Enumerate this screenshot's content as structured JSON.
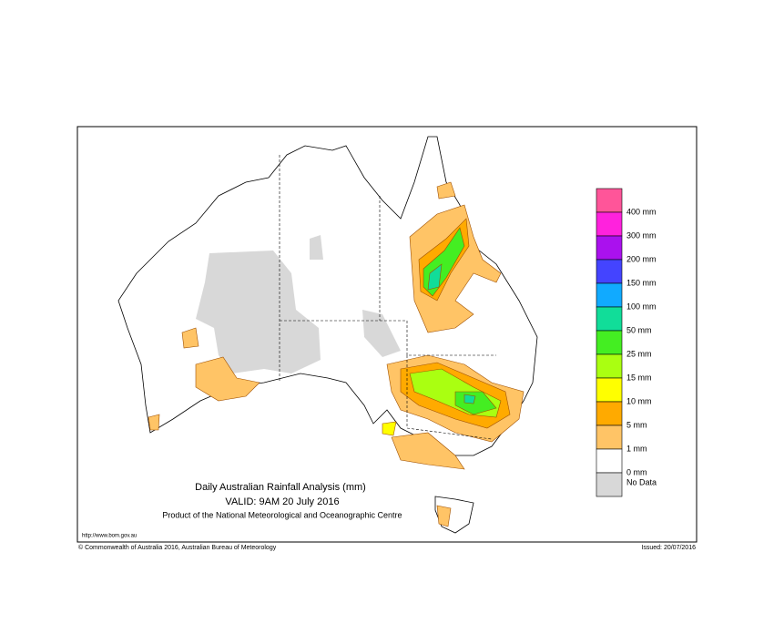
{
  "title": "Daily Australian Rainfall Analysis (mm)",
  "valid": "VALID: 9AM 20 July 2016",
  "product": "Product of the National Meteorological and Oceanographic Centre",
  "url": "http://www.bom.gov.au",
  "copyright": "© Commonwealth of Australia 2016, Australian Bureau of Meteorology",
  "issued": "Issued: 20/07/2016",
  "legend": [
    {
      "color": "#ff5599",
      "label": "400 mm"
    },
    {
      "color": "#ff22dd",
      "label": "300 mm"
    },
    {
      "color": "#aa11ee",
      "label": "200 mm"
    },
    {
      "color": "#4444ff",
      "label": "150 mm"
    },
    {
      "color": "#11aaff",
      "label": "100 mm"
    },
    {
      "color": "#11dd99",
      "label": "50 mm"
    },
    {
      "color": "#44ee22",
      "label": "25 mm"
    },
    {
      "color": "#aaff11",
      "label": "15 mm"
    },
    {
      "color": "#ffff00",
      "label": "10 mm"
    },
    {
      "color": "#ffaa00",
      "label": "5 mm"
    },
    {
      "color": "#ffc466",
      "label": "1 mm"
    },
    {
      "color": "#ffffff",
      "label": "0 mm"
    },
    {
      "color": "#d8d8d8",
      "label": "No Data"
    }
  ]
}
